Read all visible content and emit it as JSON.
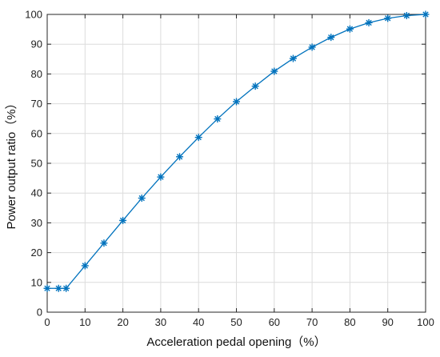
{
  "chart_data": {
    "type": "line",
    "xlabel": "Acceleration pedal opening（%）",
    "ylabel": "Power output ratio（%）",
    "xlim": [
      0,
      100
    ],
    "ylim": [
      0,
      100
    ],
    "xticks": [
      0,
      10,
      20,
      30,
      40,
      50,
      60,
      70,
      80,
      90,
      100
    ],
    "yticks": [
      0,
      10,
      20,
      30,
      40,
      50,
      60,
      70,
      80,
      90,
      100
    ],
    "grid": true,
    "marker": "asterisk",
    "series": [
      {
        "color": "#0072BD",
        "x": [
          0,
          3,
          5,
          10,
          15,
          20,
          25,
          30,
          35,
          40,
          45,
          50,
          55,
          60,
          65,
          70,
          75,
          80,
          85,
          90,
          95,
          100
        ],
        "y": [
          8,
          8,
          8,
          15.6,
          23.2,
          30.8,
          38.3,
          45.4,
          52.2,
          58.7,
          64.9,
          70.7,
          75.9,
          80.9,
          85.2,
          89.0,
          92.3,
          95.1,
          97.2,
          98.7,
          99.6,
          100
        ]
      }
    ]
  }
}
